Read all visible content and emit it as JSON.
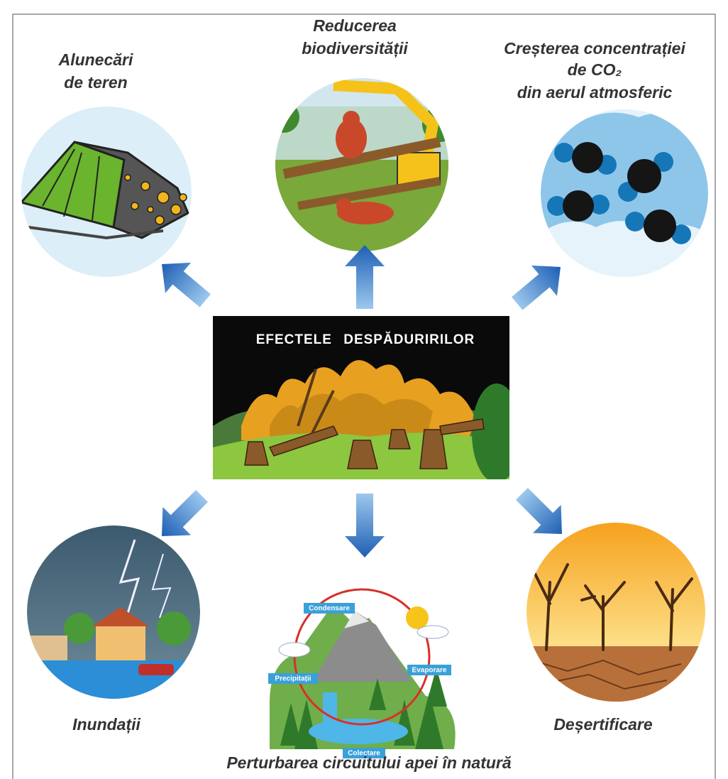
{
  "center": {
    "title": "EFECTELE DESPĂDURIRILOR"
  },
  "effects": [
    {
      "lines": [
        "Alunecări",
        "de teren"
      ]
    },
    {
      "lines": [
        "Reducerea",
        "biodiversității"
      ]
    },
    {
      "lines": [
        "Creșterea concentrației",
        "de CO₂",
        "din aerul atmosferic"
      ]
    },
    {
      "lines": [
        "Inundații"
      ]
    },
    {
      "lines": [
        "Perturbarea circuitului apei în natură"
      ]
    },
    {
      "lines": [
        "Deșertificare"
      ]
    }
  ],
  "water_cycle": {
    "labels": [
      "Condensare",
      "Precipitații",
      "Evaporare",
      "Colectare"
    ]
  }
}
